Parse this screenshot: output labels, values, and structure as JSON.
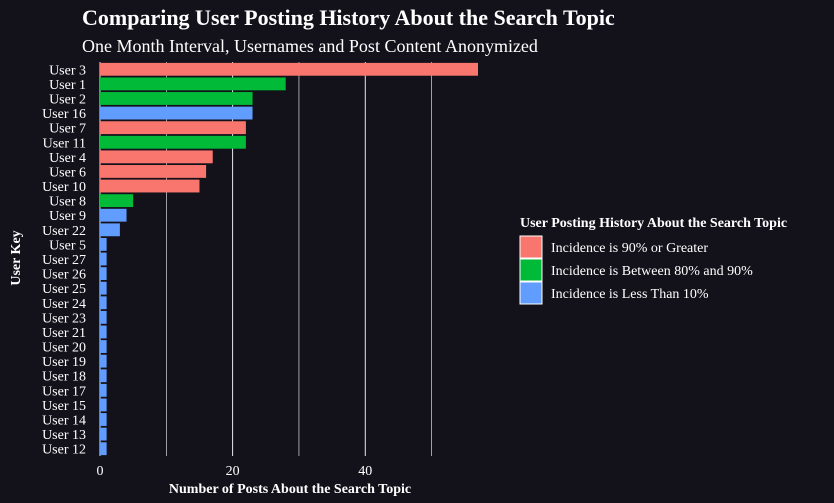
{
  "chart_data": {
    "type": "bar",
    "orientation": "horizontal",
    "title": "Comparing User Posting History About the Search Topic",
    "subtitle": "One Month Interval, Usernames and Post Content Anonymized",
    "xlabel": "Number of Posts About the Search Topic",
    "ylabel": "User Key",
    "xlim": [
      0,
      57
    ],
    "xticks": [
      0,
      20,
      40
    ],
    "grid": "vertical",
    "legend": {
      "title": "User Posting History About the Search Topic",
      "placement": "right",
      "entries": [
        {
          "key": "high",
          "label": "Incidence is 90% or Greater",
          "color": "#f8766d"
        },
        {
          "key": "mid",
          "label": "Incidence is Between 80% and 90%",
          "color": "#00ba38"
        },
        {
          "key": "low",
          "label": "Incidence is Less Than 10%",
          "color": "#619cff"
        }
      ]
    },
    "bars": [
      {
        "category": "User 3",
        "value": 57,
        "group": "high"
      },
      {
        "category": "User 1",
        "value": 28,
        "group": "mid"
      },
      {
        "category": "User 2",
        "value": 23,
        "group": "mid"
      },
      {
        "category": "User 16",
        "value": 23,
        "group": "low"
      },
      {
        "category": "User 7",
        "value": 22,
        "group": "high"
      },
      {
        "category": "User 11",
        "value": 22,
        "group": "mid"
      },
      {
        "category": "User 4",
        "value": 17,
        "group": "high"
      },
      {
        "category": "User 6",
        "value": 16,
        "group": "high"
      },
      {
        "category": "User 10",
        "value": 15,
        "group": "high"
      },
      {
        "category": "User 8",
        "value": 5,
        "group": "mid"
      },
      {
        "category": "User 9",
        "value": 4,
        "group": "low"
      },
      {
        "category": "User 22",
        "value": 3,
        "group": "low"
      },
      {
        "category": "User 5",
        "value": 1,
        "group": "low"
      },
      {
        "category": "User 27",
        "value": 1,
        "group": "low"
      },
      {
        "category": "User 26",
        "value": 1,
        "group": "low"
      },
      {
        "category": "User 25",
        "value": 1,
        "group": "low"
      },
      {
        "category": "User 24",
        "value": 1,
        "group": "low"
      },
      {
        "category": "User 23",
        "value": 1,
        "group": "low"
      },
      {
        "category": "User 21",
        "value": 1,
        "group": "low"
      },
      {
        "category": "User 20",
        "value": 1,
        "group": "low"
      },
      {
        "category": "User 19",
        "value": 1,
        "group": "low"
      },
      {
        "category": "User 18",
        "value": 1,
        "group": "low"
      },
      {
        "category": "User 17",
        "value": 1,
        "group": "low"
      },
      {
        "category": "User 15",
        "value": 1,
        "group": "low"
      },
      {
        "category": "User 14",
        "value": 1,
        "group": "low"
      },
      {
        "category": "User 13",
        "value": 1,
        "group": "low"
      },
      {
        "category": "User 12",
        "value": 1,
        "group": "low"
      }
    ]
  }
}
